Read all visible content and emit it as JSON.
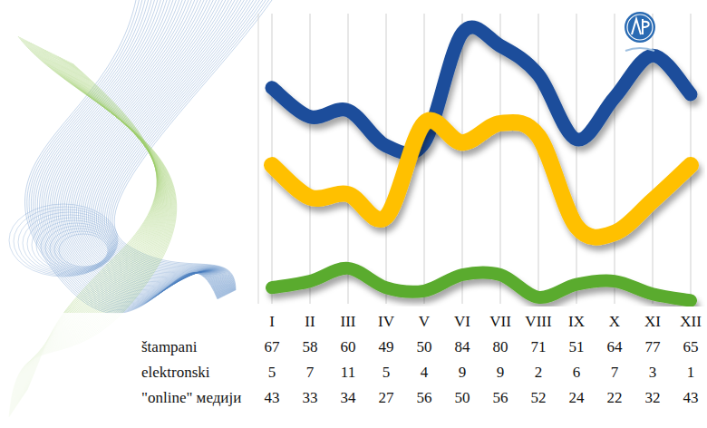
{
  "chart_data": {
    "type": "line",
    "categories": [
      "I",
      "II",
      "III",
      "IV",
      "V",
      "VI",
      "VII",
      "VIII",
      "IX",
      "X",
      "XI",
      "XII"
    ],
    "series": [
      {
        "name": "štampani",
        "color": "#1b4d9b",
        "values": [
          67,
          58,
          60,
          49,
          50,
          84,
          80,
          71,
          51,
          64,
          77,
          65
        ]
      },
      {
        "name": "elektronski",
        "color": "#5aab2e",
        "values": [
          5,
          7,
          11,
          5,
          4,
          9,
          9,
          2,
          6,
          7,
          3,
          1
        ]
      },
      {
        "name": "\"online\" медији",
        "color": "#ffc000",
        "values": [
          43,
          33,
          34,
          27,
          56,
          50,
          56,
          52,
          24,
          22,
          32,
          43
        ]
      }
    ],
    "ylim": [
      0,
      90
    ],
    "grid": true,
    "tick_labels": "x",
    "data_labels": true,
    "legend": "bottom-left"
  }
}
